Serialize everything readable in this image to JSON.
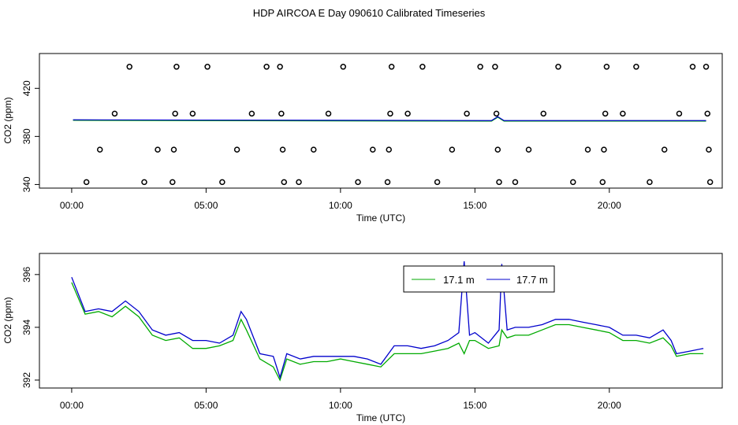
{
  "figure": {
    "title": "HDP AIRCOA E  Day 090610  Calibrated Timeseries"
  },
  "chart_data": [
    {
      "type": "scatter",
      "title": "",
      "xlabel": "Time (UTC)",
      "ylabel": "CO2 (ppm)",
      "xlim": [
        -1.2,
        24.2
      ],
      "ylim": [
        337,
        449
      ],
      "x_ticks": [
        0,
        5,
        10,
        15,
        20
      ],
      "x_tick_labels": [
        "00:00",
        "05:00",
        "10:00",
        "15:00",
        "20:00"
      ],
      "y_ticks": [
        340,
        380,
        420
      ],
      "y_tick_labels": [
        "340",
        "380",
        "420"
      ],
      "grid": false,
      "legend": "none",
      "series_colors": [
        "#00aa00",
        "#0000cc"
      ],
      "line_level": 393.5,
      "line_x_range": [
        0.05,
        23.6
      ],
      "bump_x": 15.85,
      "points": [
        {
          "x": 0.55,
          "y": 342
        },
        {
          "x": 1.05,
          "y": 369
        },
        {
          "x": 1.6,
          "y": 399
        },
        {
          "x": 2.15,
          "y": 438
        },
        {
          "x": 2.7,
          "y": 342
        },
        {
          "x": 3.2,
          "y": 369
        },
        {
          "x": 3.75,
          "y": 342
        },
        {
          "x": 3.8,
          "y": 369
        },
        {
          "x": 3.85,
          "y": 399
        },
        {
          "x": 3.9,
          "y": 438
        },
        {
          "x": 4.5,
          "y": 399
        },
        {
          "x": 5.05,
          "y": 438
        },
        {
          "x": 5.6,
          "y": 342
        },
        {
          "x": 6.15,
          "y": 369
        },
        {
          "x": 6.7,
          "y": 399
        },
        {
          "x": 7.25,
          "y": 438
        },
        {
          "x": 7.75,
          "y": 438
        },
        {
          "x": 7.8,
          "y": 399
        },
        {
          "x": 7.85,
          "y": 369
        },
        {
          "x": 7.9,
          "y": 342
        },
        {
          "x": 8.45,
          "y": 342
        },
        {
          "x": 9.0,
          "y": 369
        },
        {
          "x": 9.55,
          "y": 399
        },
        {
          "x": 10.1,
          "y": 438
        },
        {
          "x": 10.65,
          "y": 342
        },
        {
          "x": 11.2,
          "y": 369
        },
        {
          "x": 11.75,
          "y": 342
        },
        {
          "x": 11.8,
          "y": 369
        },
        {
          "x": 11.85,
          "y": 399
        },
        {
          "x": 11.9,
          "y": 438
        },
        {
          "x": 12.5,
          "y": 399
        },
        {
          "x": 13.05,
          "y": 438
        },
        {
          "x": 13.6,
          "y": 342
        },
        {
          "x": 14.15,
          "y": 369
        },
        {
          "x": 14.7,
          "y": 399
        },
        {
          "x": 15.2,
          "y": 438
        },
        {
          "x": 15.75,
          "y": 438
        },
        {
          "x": 15.8,
          "y": 399
        },
        {
          "x": 15.85,
          "y": 369
        },
        {
          "x": 15.9,
          "y": 342
        },
        {
          "x": 16.5,
          "y": 342
        },
        {
          "x": 17.0,
          "y": 369
        },
        {
          "x": 17.55,
          "y": 399
        },
        {
          "x": 18.1,
          "y": 438
        },
        {
          "x": 18.65,
          "y": 342
        },
        {
          "x": 19.2,
          "y": 369
        },
        {
          "x": 19.75,
          "y": 342
        },
        {
          "x": 19.8,
          "y": 369
        },
        {
          "x": 19.85,
          "y": 399
        },
        {
          "x": 19.9,
          "y": 438
        },
        {
          "x": 20.5,
          "y": 399
        },
        {
          "x": 21.0,
          "y": 438
        },
        {
          "x": 21.5,
          "y": 342
        },
        {
          "x": 22.05,
          "y": 369
        },
        {
          "x": 22.6,
          "y": 399
        },
        {
          "x": 23.1,
          "y": 438
        },
        {
          "x": 23.6,
          "y": 438
        },
        {
          "x": 23.65,
          "y": 399
        },
        {
          "x": 23.7,
          "y": 369
        },
        {
          "x": 23.75,
          "y": 342
        }
      ]
    },
    {
      "type": "line",
      "title": "",
      "xlabel": "Time (UTC)",
      "ylabel": "CO2 (ppm)",
      "xlim": [
        -1.2,
        24.2
      ],
      "ylim": [
        391.7,
        396.8
      ],
      "x_ticks": [
        0,
        5,
        10,
        15,
        20
      ],
      "x_tick_labels": [
        "00:00",
        "05:00",
        "10:00",
        "15:00",
        "20:00"
      ],
      "y_ticks": [
        392,
        394,
        396
      ],
      "y_tick_labels": [
        "392",
        "394",
        "396"
      ],
      "grid": false,
      "legend": "top-right",
      "x": [
        0.0,
        0.5,
        1.0,
        1.5,
        2.0,
        2.5,
        3.0,
        3.5,
        4.0,
        4.5,
        5.0,
        5.5,
        6.0,
        6.3,
        6.5,
        7.0,
        7.5,
        7.75,
        8.0,
        8.5,
        9.0,
        9.5,
        10.0,
        10.5,
        11.0,
        11.5,
        12.0,
        12.5,
        13.0,
        13.5,
        14.0,
        14.4,
        14.6,
        14.8,
        15.0,
        15.5,
        15.9,
        16.0,
        16.2,
        16.5,
        17.0,
        17.5,
        18.0,
        18.5,
        19.0,
        19.5,
        20.0,
        20.5,
        21.0,
        21.5,
        22.0,
        22.3,
        22.5,
        23.0,
        23.5
      ],
      "series": [
        {
          "name": "17.1 m",
          "color": "#00aa00",
          "values": [
            395.7,
            394.5,
            394.6,
            394.4,
            394.8,
            394.4,
            393.7,
            393.5,
            393.6,
            393.2,
            393.2,
            393.3,
            393.5,
            394.3,
            393.9,
            392.8,
            392.5,
            392.0,
            392.8,
            392.6,
            392.7,
            392.7,
            392.8,
            392.7,
            392.6,
            392.5,
            393.0,
            393.0,
            393.0,
            393.1,
            393.2,
            393.4,
            393.0,
            393.5,
            393.5,
            393.2,
            393.3,
            393.9,
            393.6,
            393.7,
            393.7,
            393.9,
            394.1,
            394.1,
            394.0,
            393.9,
            393.8,
            393.5,
            393.5,
            393.4,
            393.6,
            393.3,
            392.9,
            393.0,
            393.0
          ]
        },
        {
          "name": "17.7 m",
          "color": "#0000cc",
          "values": [
            395.9,
            394.6,
            394.7,
            394.6,
            395.0,
            394.6,
            393.9,
            393.7,
            393.8,
            393.5,
            393.5,
            393.4,
            393.7,
            394.6,
            394.3,
            393.0,
            392.9,
            392.1,
            393.0,
            392.8,
            392.9,
            392.9,
            392.9,
            392.9,
            392.8,
            392.6,
            393.3,
            393.3,
            393.2,
            393.3,
            393.5,
            393.8,
            396.5,
            393.7,
            393.8,
            393.4,
            393.9,
            396.4,
            393.9,
            394.0,
            394.0,
            394.1,
            394.3,
            394.3,
            394.2,
            394.1,
            394.0,
            393.7,
            393.7,
            393.6,
            393.9,
            393.5,
            393.0,
            393.1,
            393.2
          ]
        }
      ]
    }
  ]
}
